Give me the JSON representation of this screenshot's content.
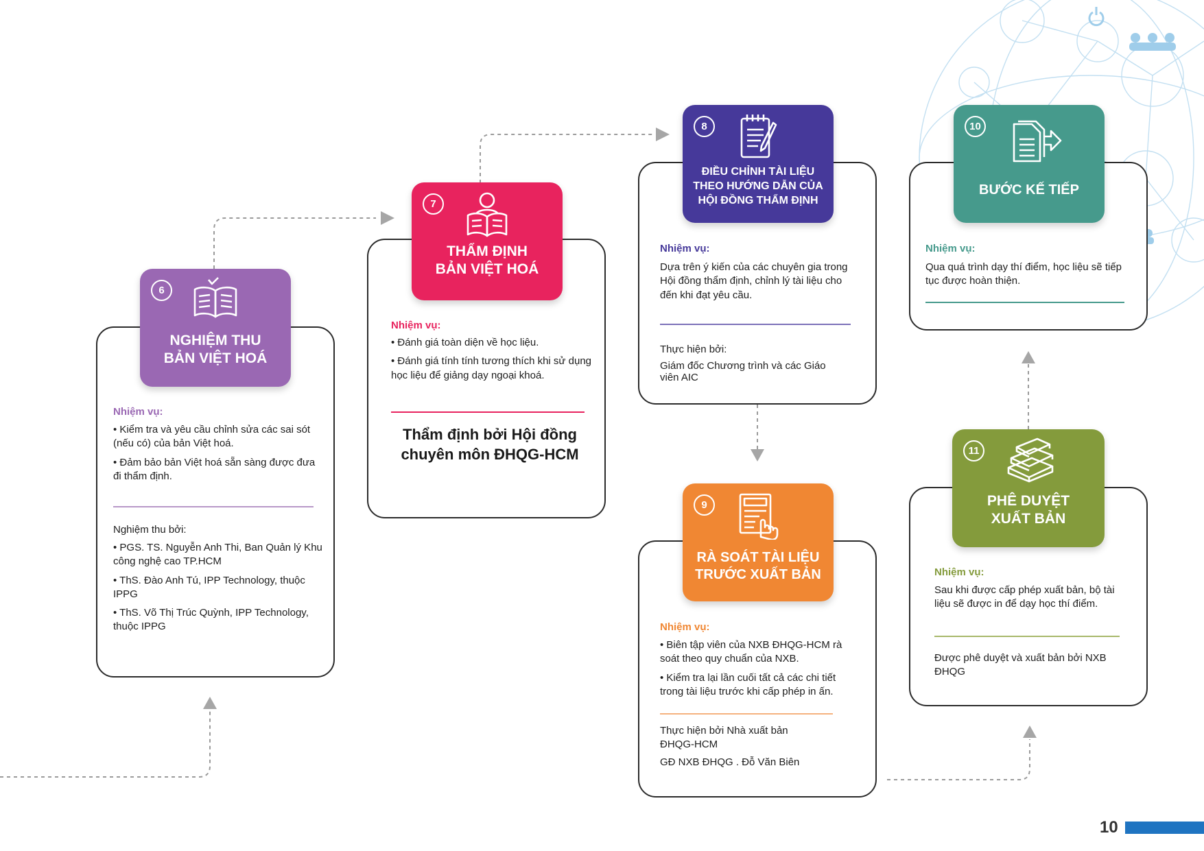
{
  "colors": {
    "step6": "#9a68b3",
    "step7": "#e8235e",
    "step8": "#46399a",
    "step9": "#f08733",
    "step10": "#469a8c",
    "step11": "#849b3c",
    "page_bar": "#1f74c1"
  },
  "steps": {
    "s6": {
      "number": "6",
      "icon": "open-book-check-icon",
      "title_line1": "NGHIỆM THU",
      "title_line2": "BẢN VIỆT HOÁ",
      "task_label": "Nhiệm vụ:",
      "tasks": [
        "Kiểm tra và yêu cầu chỉnh sửa các sai sót (nếu có) của bản Việt hoá.",
        "Đảm bảo bản Việt hoá sẵn sàng được đưa đi thẩm định."
      ],
      "by_label": "Nghiệm thu bởi:",
      "by_items": [
        "PGS. TS. Nguyễn Anh Thi, Ban Quản lý Khu công nghệ cao TP.HCM",
        "ThS. Đào Anh Tú, IPP Technology, thuộc IPPG",
        "ThS. Võ Thị Trúc Quỳnh, IPP Technology, thuộc IPPG"
      ]
    },
    "s7": {
      "number": "7",
      "icon": "person-reading-icon",
      "title_line1": "THẨM ĐỊNH",
      "title_line2": "BẢN VIỆT HOÁ",
      "task_label": "Nhiệm vụ:",
      "tasks": [
        "Đánh giá toàn diện về học liệu.",
        "Đánh giá tính tính tương thích khi sử dụng học liệu để giảng dạy ngoại khoá."
      ],
      "by_text_line1": "Thẩm định bởi Hội đồng",
      "by_text_line2": "chuyên môn ĐHQG-HCM"
    },
    "s8": {
      "number": "8",
      "icon": "notepad-pencil-icon",
      "title_line1": "ĐIỀU CHỈNH TÀI LIỆU",
      "title_line2": "THEO HƯỚNG DẪN CỦA",
      "title_line3": "HỘI ĐỒNG THẨM ĐỊNH",
      "task_label": "Nhiệm vụ:",
      "task_text": "Dựa trên ý kiến của các chuyên gia trong Hội đồng thẩm định, chỉnh lý tài liệu cho đến khi đạt yêu cầu.",
      "by_label": "Thực hiện bởi:",
      "by_text": "Giám đốc Chương trình và các Giáo viên AIC"
    },
    "s9": {
      "number": "9",
      "icon": "document-hand-icon",
      "title_line1": "RÀ SOÁT TÀI LIỆU",
      "title_line2": "TRƯỚC XUẤT BẢN",
      "task_label": "Nhiệm vụ:",
      "tasks": [
        "Biên tập viên của NXB ĐHQG-HCM rà soát theo quy chuẩn của NXB.",
        "Kiểm tra lại lần cuối tất cả các chi tiết trong tài liệu trước khi cấp phép in ấn."
      ],
      "by_text1": "Thực hiện bởi Nhà xuất bản ĐHQG-HCM",
      "by_text2": "GĐ NXB ĐHQG . Đỗ Văn Biên"
    },
    "s10": {
      "number": "10",
      "icon": "document-arrow-icon",
      "title_line1": "BƯỚC KẾ TIẾP",
      "task_label": "Nhiệm vụ:",
      "task_text": "Qua quá trình dạy thí điểm, học liệu sẽ tiếp tục được hoàn thiện."
    },
    "s11": {
      "number": "11",
      "icon": "stacked-books-icon",
      "title_line1": "PHÊ DUYỆT",
      "title_line2": "XUẤT BẢN",
      "task_label": "Nhiệm vụ:",
      "task_text": "Sau khi được cấp phép xuất bản, bộ tài liệu sẽ được in để dạy học thí điểm.",
      "by_text": "Được phê duyệt và xuất bản bởi NXB ĐHQG"
    }
  },
  "page_number": "10"
}
